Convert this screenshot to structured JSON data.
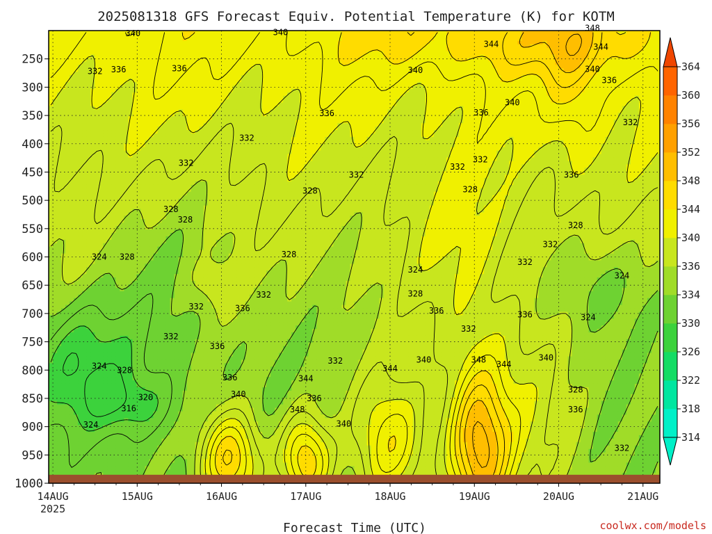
{
  "title": "2025081318 GFS Forecast Equiv. Potential Temperature (K) for KOTM",
  "xlabel": "Forecast Time (UTC)",
  "watermark": "coolwx.com/models",
  "chart_data": {
    "type": "heatmap",
    "title": "2025081318 GFS Forecast Equiv. Potential Temperature (K) for KOTM",
    "xlabel": "Forecast Time (UTC)",
    "ylabel": "",
    "x_ticks": [
      "14AUG",
      "15AUG",
      "16AUG",
      "17AUG",
      "18AUG",
      "19AUG",
      "20AUG",
      "21AUG"
    ],
    "x_year_label": "2025",
    "x_range_days": [
      -0.05,
      7.2
    ],
    "y_ticks": [
      250,
      300,
      350,
      400,
      450,
      500,
      550,
      600,
      650,
      700,
      750,
      800,
      850,
      900,
      950,
      1000
    ],
    "y_range_hpa": [
      200,
      1000
    ],
    "ground_level_hpa": 985,
    "colorbar_ticks": [
      314,
      318,
      322,
      326,
      330,
      334,
      336,
      340,
      344,
      348,
      352,
      356,
      360,
      364
    ],
    "colorbar_colors": [
      "#00f0c8",
      "#00e6a0",
      "#14dc64",
      "#3cd23c",
      "#6ed232",
      "#a0dc28",
      "#c8e61e",
      "#f0f000",
      "#ffdc00",
      "#ffbe00",
      "#ffa000",
      "#ff8200",
      "#ff6400",
      "#f04600"
    ],
    "contour_labels": [
      {
        "x": 0.95,
        "p": 205,
        "v": "340"
      },
      {
        "x": 2.7,
        "p": 203,
        "v": "340"
      },
      {
        "x": 6.4,
        "p": 196,
        "v": "348"
      },
      {
        "x": 5.2,
        "p": 224,
        "v": "344"
      },
      {
        "x": 6.5,
        "p": 229,
        "v": "344"
      },
      {
        "x": 0.5,
        "p": 272,
        "v": "332"
      },
      {
        "x": 0.78,
        "p": 269,
        "v": "336"
      },
      {
        "x": 1.5,
        "p": 267,
        "v": "336"
      },
      {
        "x": 4.3,
        "p": 270,
        "v": "340"
      },
      {
        "x": 6.4,
        "p": 268,
        "v": "340"
      },
      {
        "x": 6.6,
        "p": 288,
        "v": "336"
      },
      {
        "x": 5.45,
        "p": 327,
        "v": "340"
      },
      {
        "x": 3.25,
        "p": 346,
        "v": "336"
      },
      {
        "x": 5.08,
        "p": 345,
        "v": "336"
      },
      {
        "x": 6.85,
        "p": 362,
        "v": "332"
      },
      {
        "x": 2.3,
        "p": 390,
        "v": "332"
      },
      {
        "x": 1.58,
        "p": 434,
        "v": "332"
      },
      {
        "x": 3.6,
        "p": 455,
        "v": "332"
      },
      {
        "x": 4.8,
        "p": 441,
        "v": "332"
      },
      {
        "x": 5.07,
        "p": 428,
        "v": "332"
      },
      {
        "x": 6.15,
        "p": 455,
        "v": "336"
      },
      {
        "x": 3.05,
        "p": 483,
        "v": "328"
      },
      {
        "x": 4.95,
        "p": 481,
        "v": "328"
      },
      {
        "x": 1.4,
        "p": 516,
        "v": "328"
      },
      {
        "x": 1.57,
        "p": 534,
        "v": "328"
      },
      {
        "x": 6.2,
        "p": 544,
        "v": "328"
      },
      {
        "x": 5.9,
        "p": 578,
        "v": "332"
      },
      {
        "x": 0.55,
        "p": 600,
        "v": "324"
      },
      {
        "x": 0.88,
        "p": 600,
        "v": "328"
      },
      {
        "x": 2.8,
        "p": 596,
        "v": "328"
      },
      {
        "x": 5.6,
        "p": 609,
        "v": "332"
      },
      {
        "x": 4.3,
        "p": 623,
        "v": "324"
      },
      {
        "x": 6.75,
        "p": 633,
        "v": "324"
      },
      {
        "x": 2.5,
        "p": 667,
        "v": "332"
      },
      {
        "x": 4.3,
        "p": 665,
        "v": "328"
      },
      {
        "x": 1.7,
        "p": 688,
        "v": "332"
      },
      {
        "x": 2.25,
        "p": 691,
        "v": "336"
      },
      {
        "x": 4.55,
        "p": 695,
        "v": "336"
      },
      {
        "x": 5.6,
        "p": 702,
        "v": "336"
      },
      {
        "x": 6.35,
        "p": 707,
        "v": "324"
      },
      {
        "x": 4.93,
        "p": 727,
        "v": "332"
      },
      {
        "x": 1.4,
        "p": 741,
        "v": "332"
      },
      {
        "x": 1.95,
        "p": 758,
        "v": "336"
      },
      {
        "x": 3.35,
        "p": 784,
        "v": "332"
      },
      {
        "x": 5.05,
        "p": 782,
        "v": "348"
      },
      {
        "x": 5.35,
        "p": 790,
        "v": "344"
      },
      {
        "x": 5.85,
        "p": 778,
        "v": "340"
      },
      {
        "x": 0.55,
        "p": 793,
        "v": "324"
      },
      {
        "x": 0.85,
        "p": 800,
        "v": "328"
      },
      {
        "x": 4.4,
        "p": 782,
        "v": "340"
      },
      {
        "x": 4.0,
        "p": 797,
        "v": "344"
      },
      {
        "x": 2.1,
        "p": 813,
        "v": "336"
      },
      {
        "x": 3.0,
        "p": 815,
        "v": "344"
      },
      {
        "x": 2.2,
        "p": 843,
        "v": "340"
      },
      {
        "x": 1.1,
        "p": 848,
        "v": "320"
      },
      {
        "x": 3.1,
        "p": 850,
        "v": "336"
      },
      {
        "x": 6.2,
        "p": 835,
        "v": "328"
      },
      {
        "x": 0.9,
        "p": 868,
        "v": "316"
      },
      {
        "x": 2.9,
        "p": 870,
        "v": "348"
      },
      {
        "x": 6.2,
        "p": 870,
        "v": "336"
      },
      {
        "x": 0.45,
        "p": 897,
        "v": "324"
      },
      {
        "x": 3.45,
        "p": 895,
        "v": "340"
      },
      {
        "x": 6.75,
        "p": 938,
        "v": "332"
      }
    ]
  }
}
